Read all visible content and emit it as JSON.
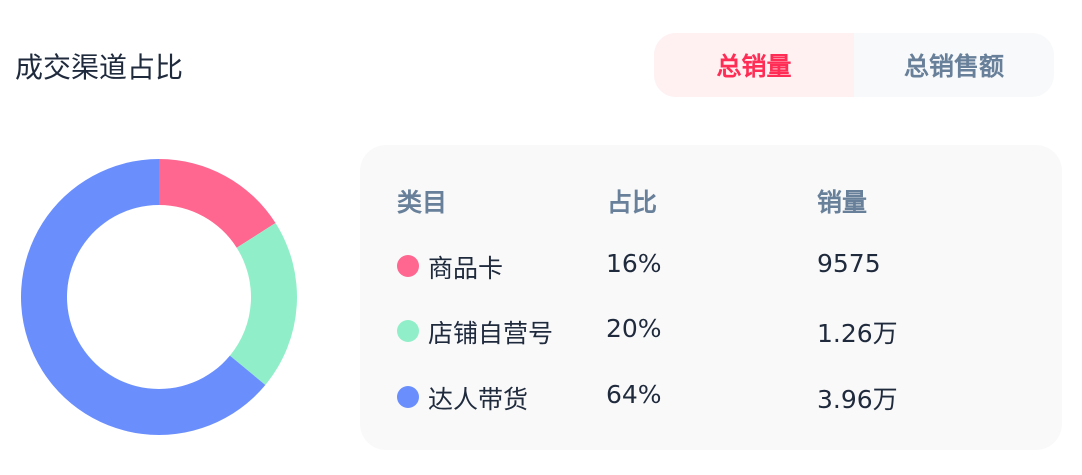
{
  "header": {
    "title": "成交渠道占比",
    "tabs": [
      {
        "label": "总销量",
        "active": true
      },
      {
        "label": "总销售额",
        "active": false
      }
    ]
  },
  "chart_data": {
    "type": "pie",
    "donut": true,
    "categories": [
      "商品卡",
      "店铺自营号",
      "达人带货"
    ],
    "values": [
      16,
      20,
      64
    ],
    "colors": [
      "#ff6690",
      "#90efc8",
      "#6a8ffd"
    ]
  },
  "table": {
    "headers": [
      "类目",
      "占比",
      "销量"
    ],
    "rows": [
      {
        "name": "商品卡",
        "share": "16%",
        "sales": "9575",
        "color": "#ff6690"
      },
      {
        "name": "店铺自营号",
        "share": "20%",
        "sales": "1.26万",
        "color": "#90efc8"
      },
      {
        "name": "达人带货",
        "share": "64%",
        "sales": "3.96万",
        "color": "#6a8ffd"
      }
    ]
  }
}
